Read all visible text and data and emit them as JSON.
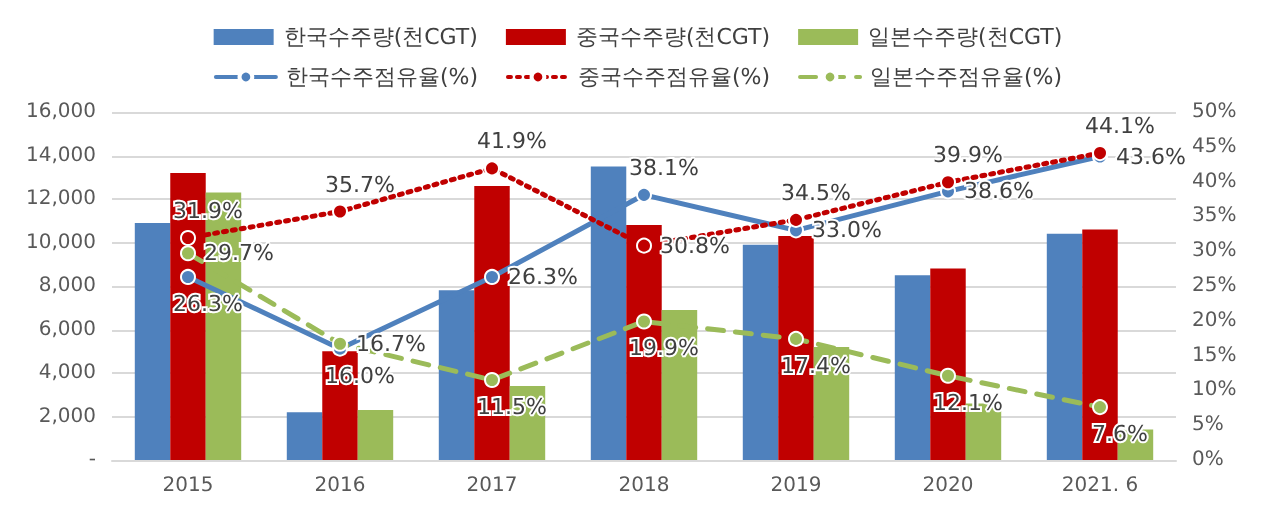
{
  "chart_data": {
    "type": "bar",
    "categories": [
      "2015",
      "2016",
      "2017",
      "2018",
      "2019",
      "2020",
      "2021. 6"
    ],
    "series": [
      {
        "name": "한국수주량(천CGT)",
        "color": "#4f81bd",
        "values": [
          10900,
          2200,
          7800,
          13500,
          9900,
          8500,
          10400
        ]
      },
      {
        "name": "중국수주량(천CGT)",
        "color": "#c00000",
        "values": [
          13200,
          5000,
          12600,
          10800,
          10300,
          8800,
          10600
        ]
      },
      {
        "name": "일본수주량(천CGT)",
        "color": "#9bbb59",
        "values": [
          12300,
          2300,
          3400,
          6900,
          5200,
          2600,
          1400
        ]
      },
      {
        "name": "한국수주점유율(%)",
        "type": "line",
        "axis": "y2",
        "color": "#4f81bd",
        "line_style": "solid",
        "marker": "circle",
        "values": [
          26.3,
          16.0,
          26.3,
          38.1,
          33.0,
          38.6,
          43.6
        ],
        "value_labels": [
          "26.3%",
          "16.0%",
          "26.3%",
          "38.1%",
          "33.0%",
          "38.6%",
          "43.6%"
        ]
      },
      {
        "name": "중국수주점유율(%)",
        "type": "line",
        "axis": "y2",
        "color": "#c00000",
        "line_style": "dotted",
        "marker": "circle",
        "values": [
          31.9,
          35.7,
          41.9,
          30.8,
          34.5,
          39.9,
          44.1
        ],
        "value_labels": [
          "31.9%",
          "35.7%",
          "41.9%",
          "30.8%",
          "34.5%",
          "39.9%",
          "44.1%"
        ]
      },
      {
        "name": "일본수주점유율(%)",
        "type": "line",
        "axis": "y2",
        "color": "#9bbb59",
        "line_style": "dashed",
        "marker": "circle",
        "values": [
          29.7,
          16.7,
          11.5,
          19.9,
          17.4,
          12.1,
          7.6
        ],
        "value_labels": [
          "29.7%",
          "16.7%",
          "11.5%",
          "19.9%",
          "17.4%",
          "12.1%",
          "7.6%"
        ]
      }
    ],
    "ylim": [
      0,
      16000
    ],
    "yticks": [
      {
        "value": 0,
        "label": "-"
      },
      {
        "value": 2000,
        "label": "2,000"
      },
      {
        "value": 4000,
        "label": "4,000"
      },
      {
        "value": 6000,
        "label": "6,000"
      },
      {
        "value": 8000,
        "label": "8,000"
      },
      {
        "value": 10000,
        "label": "10,000"
      },
      {
        "value": 12000,
        "label": "12,000"
      },
      {
        "value": 14000,
        "label": "14,000"
      },
      {
        "value": 16000,
        "label": "16,000"
      }
    ],
    "y2lim": [
      0,
      50
    ],
    "y2ticks": [
      {
        "value": 0,
        "label": "0%"
      },
      {
        "value": 5,
        "label": "5%"
      },
      {
        "value": 10,
        "label": "10%"
      },
      {
        "value": 15,
        "label": "15%"
      },
      {
        "value": 20,
        "label": "20%"
      },
      {
        "value": 25,
        "label": "25%"
      },
      {
        "value": 30,
        "label": "30%"
      },
      {
        "value": 35,
        "label": "35%"
      },
      {
        "value": 40,
        "label": "40%"
      },
      {
        "value": 45,
        "label": "45%"
      },
      {
        "value": 50,
        "label": "50%"
      }
    ],
    "grid": "y",
    "legend": "top"
  }
}
